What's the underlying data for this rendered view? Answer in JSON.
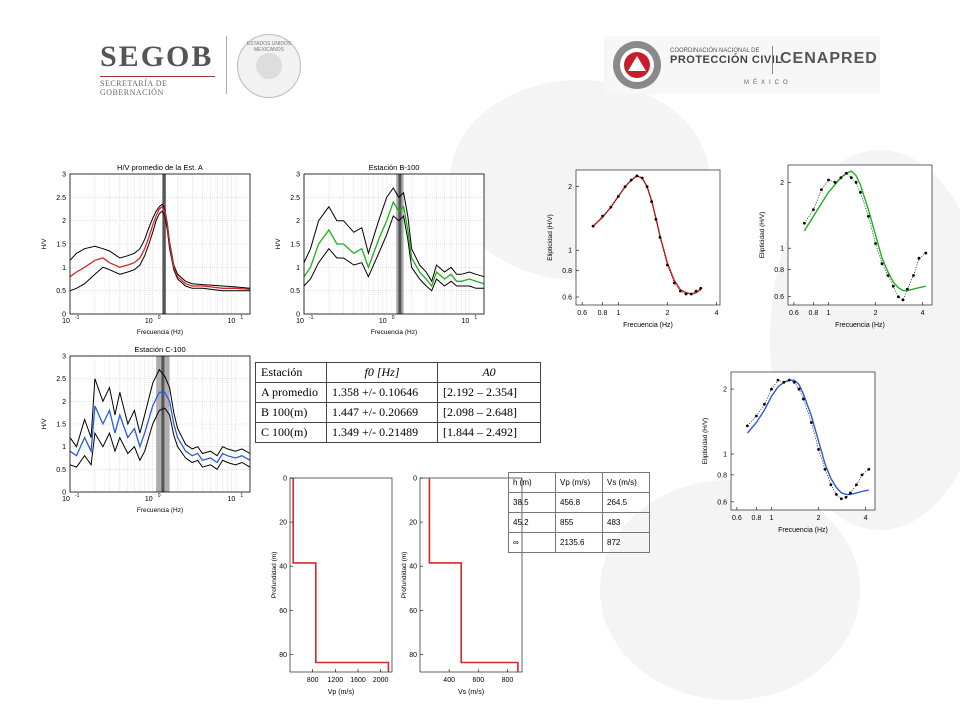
{
  "header": {
    "segob": {
      "name": "SEGOB",
      "subtitle": "SECRETARÍA DE GOBERNACIÓN",
      "seal_text": "ESTADOS UNIDOS MEXICANOS"
    },
    "cenapred": {
      "line1": "COORDINACIÓN NACIONAL DE",
      "line2": "PROTECCIÓN CIVIL",
      "name": "CENAPRED",
      "country": "MÉXICO"
    }
  },
  "colors": {
    "red": "#d62828",
    "green": "#1fae1f",
    "blue": "#2b5cd6",
    "black": "#000000",
    "band": "#6e6e6e"
  },
  "chart_data": [
    {
      "id": "hv-a",
      "type": "line",
      "title": "H/V promedio de la Est. A",
      "xlabel": "Frecuencia (Hz)",
      "ylabel": "H/V",
      "xscale": "log",
      "xlim": [
        0.1,
        15
      ],
      "ylim": [
        0,
        3
      ],
      "yticks": [
        "0",
        "0.5",
        "1",
        "1.5",
        "2",
        "2.5",
        "3"
      ],
      "grid": true,
      "x": [
        0.1,
        0.12,
        0.15,
        0.2,
        0.25,
        0.3,
        0.4,
        0.5,
        0.6,
        0.7,
        0.8,
        0.9,
        1.0,
        1.1,
        1.2,
        1.3,
        1.4,
        1.5,
        1.6,
        1.8,
        2.0,
        2.5,
        3,
        4,
        5,
        7,
        10,
        15
      ],
      "series": [
        {
          "color": "red",
          "values": [
            0.8,
            0.9,
            1.0,
            1.15,
            1.2,
            1.1,
            1.0,
            1.05,
            1.1,
            1.2,
            1.4,
            1.65,
            1.9,
            2.1,
            2.25,
            2.3,
            2.2,
            1.9,
            1.5,
            1.0,
            0.8,
            0.65,
            0.6,
            0.6,
            0.58,
            0.55,
            0.55,
            0.53
          ]
        },
        {
          "color": "black",
          "values": [
            1.15,
            1.3,
            1.4,
            1.45,
            1.4,
            1.35,
            1.2,
            1.25,
            1.3,
            1.4,
            1.6,
            1.85,
            2.05,
            2.2,
            2.3,
            2.35,
            2.25,
            1.95,
            1.55,
            1.05,
            0.85,
            0.7,
            0.65,
            0.63,
            0.62,
            0.6,
            0.58,
            0.55
          ]
        },
        {
          "color": "black",
          "values": [
            0.5,
            0.55,
            0.65,
            0.85,
            1.0,
            0.95,
            0.85,
            0.9,
            0.95,
            1.05,
            1.25,
            1.5,
            1.75,
            2.0,
            2.15,
            2.2,
            2.1,
            1.8,
            1.4,
            0.95,
            0.75,
            0.6,
            0.55,
            0.55,
            0.53,
            0.5,
            0.5,
            0.5
          ]
        }
      ],
      "band": [
        1.3,
        1.45
      ],
      "xtick_labels": [
        "10",
        "10",
        "10"
      ],
      "xtick_exps": [
        "-1",
        "0",
        "1"
      ]
    },
    {
      "id": "hv-b",
      "type": "line",
      "title": "Estación B-100",
      "xlabel": "Frecuencia (Hz)",
      "ylabel": "H/V",
      "xscale": "log",
      "xlim": [
        0.1,
        15
      ],
      "ylim": [
        0,
        3
      ],
      "yticks": [
        "0",
        "0.5",
        "1",
        "1.5",
        "2",
        "2.5",
        "3"
      ],
      "grid": true,
      "x": [
        0.1,
        0.12,
        0.15,
        0.2,
        0.25,
        0.3,
        0.4,
        0.5,
        0.6,
        0.8,
        1.0,
        1.2,
        1.4,
        1.6,
        1.8,
        2.0,
        2.5,
        3,
        3.5,
        4,
        5,
        6,
        7,
        8,
        10,
        12,
        15
      ],
      "series": [
        {
          "color": "green",
          "values": [
            0.8,
            1.0,
            1.5,
            1.8,
            1.5,
            1.5,
            1.3,
            1.4,
            1.0,
            1.6,
            2.0,
            2.4,
            2.2,
            2.3,
            1.8,
            1.2,
            0.9,
            0.75,
            0.6,
            0.9,
            0.75,
            0.85,
            0.7,
            0.7,
            0.75,
            0.7,
            0.65
          ]
        },
        {
          "color": "black",
          "values": [
            1.1,
            1.4,
            2.0,
            2.3,
            2.0,
            2.0,
            1.75,
            1.85,
            1.3,
            2.0,
            2.5,
            2.7,
            2.5,
            2.6,
            2.1,
            1.4,
            1.05,
            0.9,
            0.7,
            1.05,
            0.9,
            1.0,
            0.85,
            0.85,
            0.9,
            0.85,
            0.8
          ]
        },
        {
          "color": "black",
          "values": [
            0.6,
            0.75,
            1.1,
            1.4,
            1.2,
            1.2,
            1.05,
            1.1,
            0.8,
            1.3,
            1.7,
            2.1,
            2.0,
            2.1,
            1.6,
            1.0,
            0.75,
            0.6,
            0.5,
            0.75,
            0.6,
            0.7,
            0.6,
            0.6,
            0.6,
            0.55,
            0.55
          ]
        }
      ],
      "band": [
        1.3,
        1.6
      ],
      "xtick_labels": [
        "10",
        "10",
        "10"
      ],
      "xtick_exps": [
        "-1",
        "0",
        "1"
      ]
    },
    {
      "id": "hv-c",
      "type": "line",
      "title": "Estación C-100",
      "xlabel": "Frecuencia (Hz)",
      "ylabel": "H/V",
      "xscale": "log",
      "xlim": [
        0.1,
        15
      ],
      "ylim": [
        0,
        3
      ],
      "yticks": [
        "0",
        "0.5",
        "1",
        "1.5",
        "2",
        "2.5",
        "3"
      ],
      "grid": true,
      "x": [
        0.1,
        0.12,
        0.15,
        0.18,
        0.2,
        0.25,
        0.3,
        0.35,
        0.4,
        0.5,
        0.6,
        0.7,
        0.8,
        1.0,
        1.2,
        1.4,
        1.6,
        1.8,
        2.0,
        2.5,
        3,
        3.5,
        4,
        5,
        6,
        7,
        8,
        10,
        12,
        15
      ],
      "series": [
        {
          "color": "blue",
          "values": [
            0.9,
            0.8,
            1.2,
            0.9,
            1.9,
            1.5,
            1.8,
            1.3,
            1.7,
            1.2,
            1.4,
            1.0,
            1.3,
            1.9,
            2.2,
            2.2,
            2.0,
            1.5,
            1.2,
            0.9,
            0.8,
            0.85,
            0.7,
            0.75,
            0.65,
            0.85,
            0.8,
            0.75,
            0.8,
            0.7
          ]
        },
        {
          "color": "black",
          "values": [
            1.2,
            1.0,
            1.6,
            1.2,
            2.5,
            2.0,
            2.3,
            1.7,
            2.2,
            1.5,
            1.8,
            1.3,
            1.7,
            2.4,
            2.7,
            2.55,
            2.3,
            1.75,
            1.4,
            1.05,
            0.95,
            1.0,
            0.85,
            0.9,
            0.8,
            1.0,
            0.95,
            0.9,
            0.95,
            0.85
          ]
        },
        {
          "color": "black",
          "values": [
            0.6,
            0.55,
            0.8,
            0.6,
            1.3,
            1.0,
            1.3,
            0.9,
            1.2,
            0.85,
            1.0,
            0.7,
            0.9,
            1.5,
            1.8,
            1.85,
            1.7,
            1.25,
            1.0,
            0.75,
            0.65,
            0.7,
            0.55,
            0.6,
            0.5,
            0.7,
            0.65,
            0.6,
            0.65,
            0.55
          ]
        }
      ],
      "band": [
        1.1,
        1.6
      ],
      "xtick_labels": [
        "10",
        "10",
        "10"
      ],
      "xtick_exps": [
        "-1",
        "0",
        "1"
      ]
    },
    {
      "id": "ell-red",
      "type": "line",
      "title": "",
      "xlabel": "Frecuencia (Hz)",
      "ylabel": "Elipticidad (H/V)",
      "xscale": "log",
      "yscale": "log",
      "xlim": [
        0.55,
        4.2
      ],
      "ylim": [
        0.55,
        2.4
      ],
      "xticks": [
        0.6,
        0.8,
        1,
        2,
        4
      ],
      "xtick_labels": [
        "0.6",
        "0.8",
        "1",
        "2",
        "4"
      ],
      "yticks": [
        0.6,
        0.8,
        1,
        2
      ],
      "ytick_labels": [
        "0.6",
        "0.8",
        "1",
        "2"
      ],
      "x": [
        0.7,
        0.8,
        0.9,
        1.0,
        1.1,
        1.2,
        1.3,
        1.4,
        1.5,
        1.6,
        1.7,
        1.8,
        2.0,
        2.2,
        2.4,
        2.6,
        2.8,
        3.0,
        3.2
      ],
      "series": [
        {
          "color": "black",
          "kind": "dots",
          "values": [
            1.3,
            1.45,
            1.6,
            1.8,
            2.0,
            2.15,
            2.25,
            2.2,
            2.0,
            1.7,
            1.4,
            1.15,
            0.85,
            0.7,
            0.64,
            0.62,
            0.62,
            0.64,
            0.66
          ]
        },
        {
          "color": "red",
          "kind": "line",
          "values": [
            1.3,
            1.43,
            1.6,
            1.8,
            2.0,
            2.15,
            2.25,
            2.2,
            2.0,
            1.72,
            1.42,
            1.17,
            0.87,
            0.72,
            0.65,
            0.63,
            0.62,
            0.63,
            0.65
          ]
        }
      ]
    },
    {
      "id": "ell-green",
      "type": "line",
      "title": "",
      "xlabel": "Frecuencia (Hz)",
      "ylabel": "Elipticidad (H/V)",
      "xscale": "log",
      "yscale": "log",
      "xlim": [
        0.55,
        4.6
      ],
      "ylim": [
        0.55,
        2.4
      ],
      "xticks": [
        0.6,
        0.8,
        1,
        2,
        4
      ],
      "xtick_labels": [
        "0.6",
        "0.8",
        "1",
        "2",
        "4"
      ],
      "yticks": [
        0.6,
        0.8,
        1,
        2
      ],
      "ytick_labels": [
        "0.6",
        "0.8",
        "1",
        "2"
      ],
      "x": [
        0.7,
        0.8,
        0.9,
        1.0,
        1.1,
        1.2,
        1.3,
        1.4,
        1.5,
        1.6,
        1.8,
        2.0,
        2.2,
        2.4,
        2.6,
        2.8,
        3.0,
        3.2,
        3.5,
        3.8,
        4.2
      ],
      "series": [
        {
          "color": "black",
          "kind": "dots",
          "values": [
            1.3,
            1.5,
            1.85,
            2.05,
            2.0,
            2.1,
            2.2,
            2.1,
            2.0,
            1.8,
            1.4,
            1.05,
            0.85,
            0.75,
            0.67,
            0.6,
            0.58,
            0.65,
            0.75,
            0.9,
            0.95
          ]
        },
        {
          "color": "green",
          "kind": "line",
          "values": [
            1.2,
            1.4,
            1.6,
            1.8,
            1.95,
            2.1,
            2.2,
            2.25,
            2.15,
            1.95,
            1.5,
            1.15,
            0.9,
            0.78,
            0.7,
            0.66,
            0.64,
            0.64,
            0.65,
            0.66,
            0.67
          ]
        }
      ]
    },
    {
      "id": "ell-blue",
      "type": "line",
      "title": "",
      "xlabel": "Frecuencia (Hz)",
      "ylabel": "Elipticidad (H/V)",
      "xscale": "log",
      "yscale": "log",
      "xlim": [
        0.55,
        4.6
      ],
      "ylim": [
        0.55,
        2.4
      ],
      "xticks": [
        0.6,
        0.8,
        1,
        2,
        4
      ],
      "xtick_labels": [
        "0.6",
        "0.8",
        "1",
        "2",
        "4"
      ],
      "yticks": [
        0.6,
        0.8,
        1,
        2
      ],
      "ytick_labels": [
        "0.6",
        "0.8",
        "1",
        "2"
      ],
      "x": [
        0.7,
        0.8,
        0.9,
        1.0,
        1.1,
        1.2,
        1.3,
        1.4,
        1.5,
        1.6,
        1.8,
        2.0,
        2.2,
        2.4,
        2.6,
        2.8,
        3.0,
        3.2,
        3.5,
        3.8,
        4.2
      ],
      "series": [
        {
          "color": "black",
          "kind": "dots",
          "values": [
            1.35,
            1.5,
            1.7,
            2.0,
            2.2,
            2.15,
            2.2,
            2.15,
            2.0,
            1.8,
            1.4,
            1.05,
            0.85,
            0.72,
            0.65,
            0.62,
            0.63,
            0.66,
            0.72,
            0.8,
            0.85
          ]
        },
        {
          "color": "blue",
          "kind": "line",
          "values": [
            1.25,
            1.4,
            1.6,
            1.85,
            2.05,
            2.15,
            2.2,
            2.2,
            2.1,
            1.9,
            1.5,
            1.15,
            0.9,
            0.77,
            0.7,
            0.66,
            0.65,
            0.65,
            0.66,
            0.67,
            0.68
          ]
        }
      ]
    },
    {
      "id": "vp-profile",
      "type": "line",
      "title": "",
      "xlabel": "Vp (m/s)",
      "ylabel": "Profundidad (m)",
      "xlim": [
        400,
        2200
      ],
      "ylim": [
        0,
        88
      ],
      "yinverted": true,
      "xticks": [
        800,
        1200,
        1600,
        2000
      ],
      "xtick_labels": [
        "800",
        "1200",
        "1600",
        "2000"
      ],
      "yticks": [
        0,
        20,
        40,
        60,
        80
      ],
      "ytick_labels": [
        "0",
        "20",
        "40",
        "60",
        "80"
      ],
      "x": [
        456.8,
        456.8,
        855,
        855,
        2135.6,
        2135.6
      ],
      "series": [
        {
          "color": "red",
          "values": [
            0,
            38.5,
            38.5,
            83.7,
            83.7,
            88
          ]
        }
      ]
    },
    {
      "id": "vs-profile",
      "type": "line",
      "title": "",
      "xlabel": "Vs (m/s)",
      "ylabel": "Profundidad (m)",
      "xlim": [
        200,
        900
      ],
      "ylim": [
        0,
        88
      ],
      "yinverted": true,
      "xticks": [
        400,
        600,
        800
      ],
      "xtick_labels": [
        "400",
        "600",
        "800"
      ],
      "yticks": [
        0,
        20,
        40,
        60,
        80
      ],
      "ytick_labels": [
        "0",
        "20",
        "40",
        "60",
        "80"
      ],
      "x": [
        264.5,
        264.5,
        483,
        483,
        872,
        872
      ],
      "series": [
        {
          "color": "red",
          "values": [
            0,
            38.5,
            38.5,
            83.7,
            83.7,
            88
          ]
        }
      ]
    }
  ],
  "stations_table": {
    "headers": [
      "Estación",
      "f0 [Hz]",
      "A0"
    ],
    "rows": [
      [
        "A promedio",
        "1.358 +/- 0.10646",
        "[2.192 – 2.354]"
      ],
      [
        "B 100(m)",
        "1.447 +/- 0.20669",
        "[2.098 – 2.648]"
      ],
      [
        "C 100(m)",
        "1.349 +/- 0.21489",
        "[1.844 – 2.492]"
      ]
    ]
  },
  "layers_table": {
    "headers": [
      "h (m)",
      "Vp (m/s)",
      "Vs (m/s)"
    ],
    "rows": [
      [
        "38.5",
        "456.8",
        "264.5"
      ],
      [
        "45.2",
        "855",
        "483"
      ],
      [
        "∞",
        "2135.6",
        "872"
      ]
    ]
  }
}
